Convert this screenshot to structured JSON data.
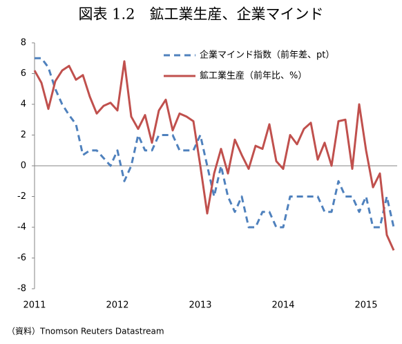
{
  "chart_data": {
    "type": "line",
    "title": "図表 1.2　鉱工業生産、企業マインド",
    "source": "（資料）Tnomson Reuters Datastream",
    "categories": [
      "2011",
      null,
      null,
      null,
      null,
      null,
      null,
      null,
      null,
      null,
      null,
      null,
      "2012",
      null,
      null,
      null,
      null,
      null,
      null,
      null,
      null,
      null,
      null,
      null,
      "2013",
      null,
      null,
      null,
      null,
      null,
      null,
      null,
      null,
      null,
      null,
      null,
      "2014",
      null,
      null,
      null,
      null,
      null,
      null,
      null,
      null,
      null,
      null,
      null,
      "2015",
      null,
      null,
      null,
      null
    ],
    "series": [
      {
        "name": "企業マインド指数（前年差、pt）",
        "color": "#4f81bd",
        "dash": true,
        "values": [
          7,
          7,
          6.4,
          5,
          4,
          3.3,
          2.7,
          0.7,
          1,
          1,
          0.5,
          0,
          1,
          -1,
          0,
          2,
          1,
          1,
          2,
          2,
          2,
          1,
          1,
          1,
          2,
          0,
          -2,
          0,
          -2,
          -3,
          -2,
          -4,
          -4,
          -3,
          -3,
          -4,
          -4,
          -2,
          -2,
          -2,
          -2,
          -2,
          -3,
          -3,
          -1,
          -2,
          -2,
          -3,
          -2,
          -4,
          -4,
          -2,
          -4
        ]
      },
      {
        "name": "鉱工業生産（前年比、%）",
        "color": "#c0504d",
        "dash": false,
        "values": [
          6.2,
          5.4,
          3.7,
          5.5,
          6.2,
          6.5,
          5.6,
          5.9,
          4.5,
          3.4,
          3.9,
          4.1,
          3.6,
          6.8,
          3.2,
          2.4,
          3.3,
          1.5,
          3.6,
          4.3,
          2.3,
          3.4,
          3.2,
          2.9,
          0,
          -3.1,
          -0.5,
          1.1,
          -0.5,
          1.7,
          0.7,
          -0.2,
          1.3,
          1.1,
          2.7,
          0.3,
          -0.2,
          2.0,
          1.4,
          2.4,
          2.8,
          0.4,
          1.5,
          0,
          2.9,
          3.0,
          -0.2,
          4.0,
          1.0,
          -1.4,
          -0.5,
          -4.5,
          -5.5
        ]
      }
    ],
    "ylim": [
      -8,
      8
    ],
    "yticks": [
      -8,
      -6,
      -4,
      -2,
      0,
      2,
      4,
      6,
      8
    ],
    "grid": false,
    "legend": "top-right"
  }
}
